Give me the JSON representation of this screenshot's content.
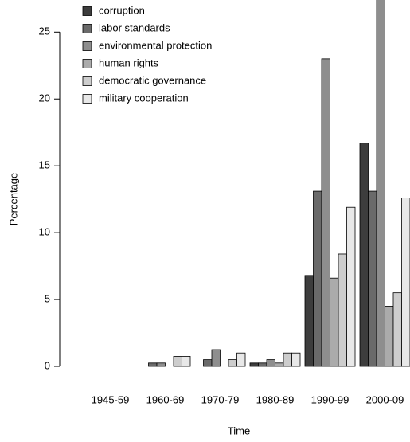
{
  "chart_data": {
    "type": "bar",
    "x_label": "Time",
    "y_label": "Percentage",
    "categories": [
      "1945-59",
      "1960-69",
      "1970-79",
      "1980-89",
      "1990-99",
      "2000-09"
    ],
    "series": [
      {
        "name": "corruption",
        "color": "#3d3d3d",
        "values": [
          0,
          0,
          0,
          0.25,
          6.8,
          16.7
        ]
      },
      {
        "name": "labor standards",
        "color": "#6a6a6a",
        "values": [
          0,
          0.25,
          0.5,
          0.25,
          13.1,
          13.1
        ]
      },
      {
        "name": "environmental protection",
        "color": "#8e8e8e",
        "values": [
          0,
          0.25,
          1.25,
          0.5,
          23,
          28
        ]
      },
      {
        "name": "human rights",
        "color": "#ababab",
        "values": [
          0,
          0,
          0,
          0.25,
          6.6,
          4.5
        ]
      },
      {
        "name": "democratic governance",
        "color": "#cdcdcd",
        "values": [
          0,
          0.75,
          0.5,
          1,
          8.4,
          5.5
        ]
      },
      {
        "name": "military cooperation",
        "color": "#e8e8e8",
        "values": [
          0,
          0.75,
          1,
          1,
          11.9,
          12.6
        ]
      }
    ],
    "ylim": [
      0,
      27.4
    ],
    "yticks": [
      0,
      5,
      10,
      15,
      20,
      25
    ],
    "legend": "top-left"
  }
}
